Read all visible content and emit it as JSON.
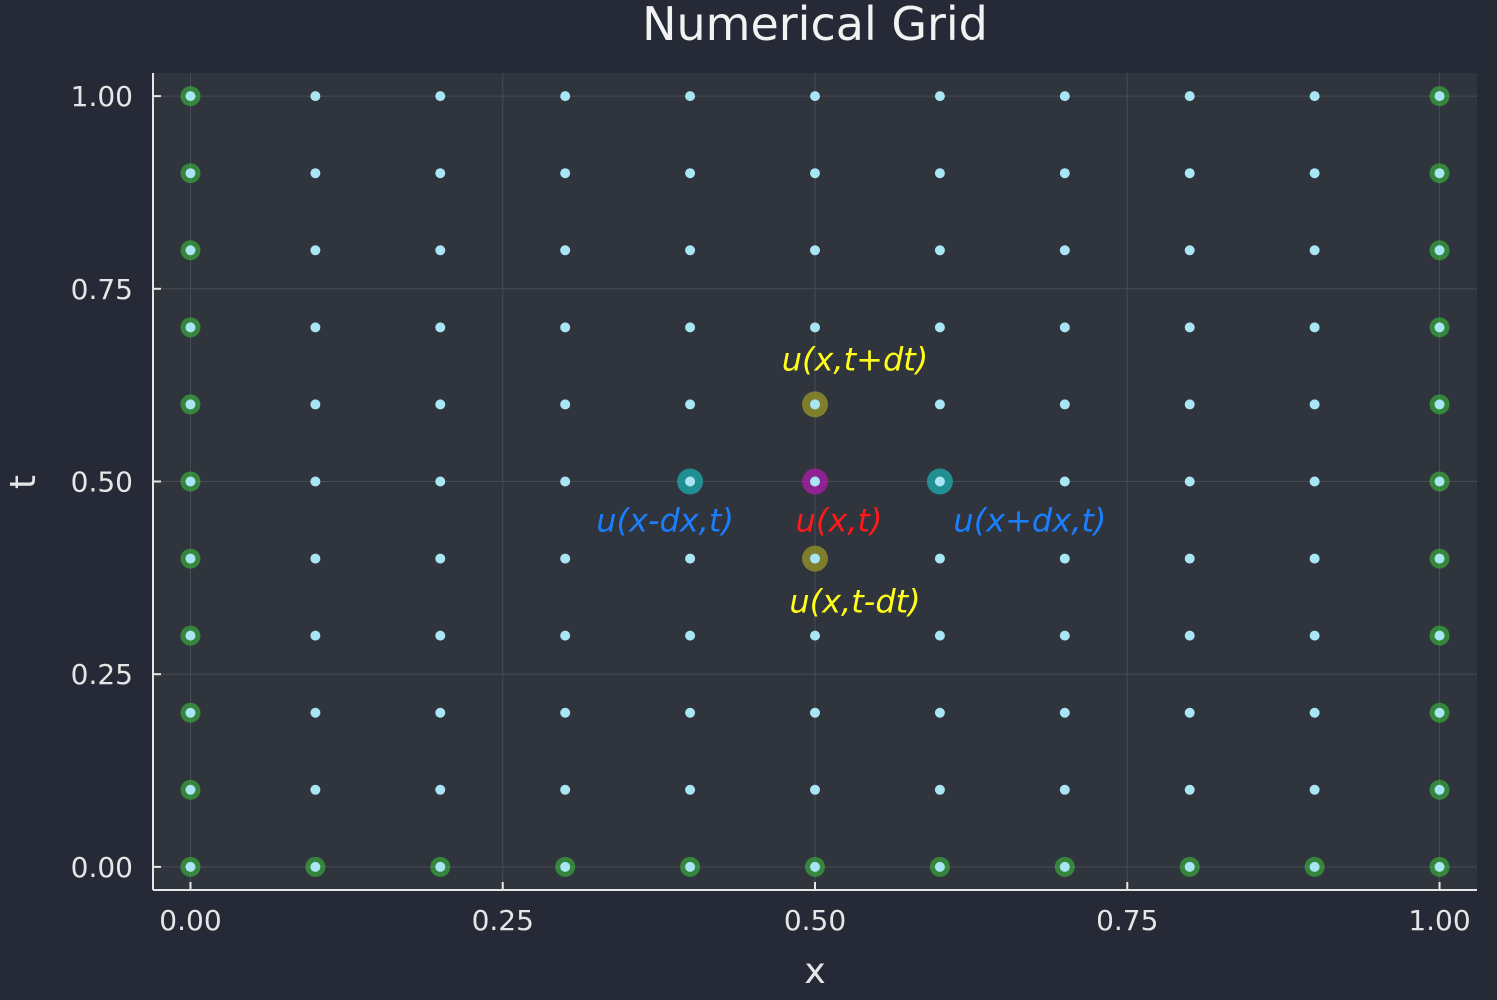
{
  "chart_data": {
    "type": "scatter",
    "title": "Numerical Grid",
    "xlabel": "x",
    "ylabel": "t",
    "xlim": [
      -0.03,
      1.03
    ],
    "ylim": [
      -0.03,
      1.03
    ],
    "xticks": [
      0.0,
      0.25,
      0.5,
      0.75,
      1.0
    ],
    "xtick_labels": [
      "0.00",
      "0.25",
      "0.50",
      "0.75",
      "1.00"
    ],
    "yticks": [
      0.0,
      0.25,
      0.5,
      0.75,
      1.0
    ],
    "ytick_labels": [
      "0.00",
      "0.25",
      "0.50",
      "0.75",
      "1.00"
    ],
    "grid": true,
    "legend": false,
    "grid_points": {
      "x": [
        0.0,
        0.1,
        0.2,
        0.3,
        0.4,
        0.5,
        0.6,
        0.7,
        0.8,
        0.9,
        1.0
      ],
      "t": [
        0.0,
        0.1,
        0.2,
        0.3,
        0.4,
        0.5,
        0.6,
        0.7,
        0.8,
        0.9,
        1.0
      ],
      "color": "#a8e6f5"
    },
    "boundary_points": {
      "description_rule": "x = 0 or x = 1 or t = 0",
      "color": "#3cc83c"
    },
    "highlights": [
      {
        "x": 0.5,
        "t": 0.5,
        "color": "#a020a0",
        "label": "u(x,t)",
        "label_color": "#ff1a1a",
        "label_pos": "below-right"
      },
      {
        "x": 0.4,
        "t": 0.5,
        "color": "#1fa0a0",
        "label": "u(x-dx,t)",
        "label_color": "#1a7fff",
        "label_pos": "below-left"
      },
      {
        "x": 0.6,
        "t": 0.5,
        "color": "#1fa0a0",
        "label": "u(x+dx,t)",
        "label_color": "#1a7fff",
        "label_pos": "below-right"
      },
      {
        "x": 0.5,
        "t": 0.6,
        "color": "#8c8c2a",
        "label": "u(x,t+dt)",
        "label_color": "#ffff1a",
        "label_pos": "above"
      },
      {
        "x": 0.5,
        "t": 0.4,
        "color": "#8c8c2a",
        "label": "u(x,t-dt)",
        "label_color": "#ffff1a",
        "label_pos": "below"
      }
    ],
    "colors": {
      "background": "#262a36",
      "plot_area": "#30343d",
      "grid": "#474b55",
      "axis": "#e6e6e6"
    }
  }
}
